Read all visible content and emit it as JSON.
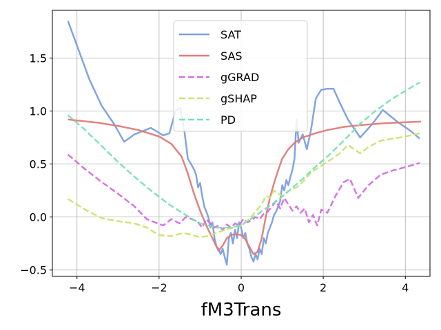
{
  "chart_data": {
    "type": "line",
    "xlabel": "fM3Trans",
    "ylabel": "",
    "title": "",
    "xlim": [
      -4.6,
      4.6
    ],
    "ylim": [
      -0.56,
      1.95
    ],
    "xticks": [
      -4,
      -2,
      0,
      2,
      4
    ],
    "xtick_labels": [
      "−4",
      "−2",
      "0",
      "2",
      "4"
    ],
    "yticks": [
      -0.5,
      0.0,
      0.5,
      1.0,
      1.5
    ],
    "ytick_labels": [
      "−0.5",
      "0.0",
      "0.5",
      "1.0",
      "1.5"
    ],
    "grid": true,
    "legend_position": "top-center",
    "series": [
      {
        "name": "SAT",
        "color": "#7b9fe0",
        "dash": "solid",
        "opacity": 1.0,
        "x": [
          -4.22,
          -3.7,
          -3.4,
          -3.1,
          -2.85,
          -2.6,
          -2.2,
          -1.9,
          -1.75,
          -1.6,
          -1.48,
          -1.38,
          -1.3,
          -1.22,
          -1.15,
          -1.1,
          -1.05,
          -1.0,
          -0.95,
          -0.9,
          -0.85,
          -0.8,
          -0.75,
          -0.7,
          -0.65,
          -0.6,
          -0.55,
          -0.5,
          -0.45,
          -0.4,
          -0.35,
          -0.3,
          -0.25,
          -0.2,
          -0.15,
          -0.1,
          -0.05,
          0.0,
          0.05,
          0.1,
          0.15,
          0.2,
          0.25,
          0.3,
          0.35,
          0.4,
          0.45,
          0.5,
          0.55,
          0.6,
          0.65,
          0.7,
          0.75,
          0.8,
          0.85,
          0.9,
          0.95,
          1.0,
          1.05,
          1.1,
          1.15,
          1.2,
          1.25,
          1.3,
          1.35,
          1.4,
          1.5,
          1.6,
          1.7,
          1.82,
          1.95,
          2.1,
          2.25,
          2.4,
          2.6,
          2.9,
          3.2,
          3.45,
          3.8,
          4.1,
          4.35
        ],
        "y": [
          1.85,
          1.3,
          1.05,
          0.88,
          0.71,
          0.78,
          0.84,
          0.77,
          0.79,
          1.0,
          1.03,
          0.8,
          0.55,
          0.5,
          0.45,
          0.4,
          0.28,
          0.32,
          0.2,
          0.1,
          0.05,
          0.0,
          -0.1,
          -0.05,
          -0.2,
          -0.28,
          -0.3,
          -0.35,
          -0.3,
          -0.38,
          -0.45,
          -0.2,
          -0.15,
          -0.25,
          -0.12,
          -0.2,
          -0.05,
          -0.1,
          -0.2,
          -0.15,
          -0.25,
          -0.3,
          -0.38,
          -0.42,
          -0.35,
          -0.4,
          -0.3,
          -0.35,
          -0.2,
          -0.25,
          -0.15,
          -0.1,
          -0.05,
          0.02,
          0.05,
          0.1,
          0.15,
          0.3,
          0.25,
          0.35,
          0.3,
          0.38,
          0.45,
          0.55,
          0.92,
          0.7,
          0.78,
          0.64,
          0.82,
          1.12,
          1.2,
          1.21,
          1.21,
          1.08,
          0.92,
          0.75,
          0.88,
          1.01,
          0.9,
          0.82,
          0.74
        ]
      },
      {
        "name": "SAS",
        "color": "#e07b78",
        "dash": "solid",
        "opacity": 1.0,
        "x": [
          -4.22,
          -3.5,
          -3.0,
          -2.5,
          -2.0,
          -1.7,
          -1.45,
          -1.3,
          -1.15,
          -1.0,
          -0.85,
          -0.7,
          -0.55,
          -0.45,
          -0.35,
          -0.25,
          -0.15,
          0.0,
          0.1,
          0.2,
          0.3,
          0.4,
          0.5,
          0.6,
          0.7,
          0.8,
          0.9,
          1.0,
          1.15,
          1.3,
          1.5,
          1.8,
          2.1,
          2.5,
          3.0,
          3.5,
          4.0,
          4.38
        ],
        "y": [
          0.92,
          0.89,
          0.86,
          0.82,
          0.76,
          0.69,
          0.57,
          0.41,
          0.22,
          0.06,
          -0.08,
          -0.2,
          -0.32,
          -0.27,
          -0.2,
          -0.17,
          -0.16,
          -0.17,
          -0.21,
          -0.28,
          -0.35,
          -0.33,
          -0.2,
          0.0,
          0.18,
          0.32,
          0.44,
          0.55,
          0.64,
          0.7,
          0.75,
          0.79,
          0.82,
          0.85,
          0.87,
          0.885,
          0.895,
          0.9
        ]
      },
      {
        "name": "gGRAD",
        "color": "#d56ee0",
        "dash": "dashed",
        "opacity": 1.0,
        "x": [
          -4.22,
          -3.8,
          -3.4,
          -3.0,
          -2.6,
          -2.3,
          -2.1,
          -1.9,
          -1.7,
          -1.5,
          -1.35,
          -1.2,
          -1.05,
          -0.95,
          -0.85,
          -0.75,
          -0.65,
          -0.55,
          -0.45,
          -0.35,
          -0.25,
          -0.15,
          -0.05,
          0.05,
          0.15,
          0.25,
          0.35,
          0.45,
          0.55,
          0.65,
          0.75,
          0.85,
          0.95,
          1.05,
          1.15,
          1.25,
          1.35,
          1.45,
          1.55,
          1.65,
          1.75,
          1.85,
          1.95,
          2.1,
          2.3,
          2.5,
          2.65,
          2.85,
          3.1,
          3.4,
          3.7,
          4.0,
          4.35
        ],
        "y": [
          0.59,
          0.45,
          0.33,
          0.22,
          0.1,
          -0.02,
          -0.05,
          -0.08,
          -0.02,
          -0.06,
          0.0,
          -0.02,
          -0.05,
          -0.1,
          -0.02,
          -0.06,
          -0.1,
          -0.08,
          -0.12,
          -0.07,
          -0.1,
          -0.06,
          -0.08,
          -0.02,
          -0.05,
          -0.03,
          0.0,
          -0.02,
          0.03,
          0.05,
          0.1,
          0.15,
          0.08,
          0.18,
          0.12,
          0.06,
          0.1,
          0.04,
          0.08,
          -0.05,
          0.02,
          -0.08,
          0.07,
          0.04,
          0.2,
          0.33,
          0.36,
          0.18,
          0.3,
          0.4,
          0.44,
          0.47,
          0.51
        ]
      },
      {
        "name": "gSHAP",
        "color": "#cde074",
        "dash": "dashed",
        "opacity": 1.0,
        "x": [
          -4.22,
          -3.8,
          -3.4,
          -3.0,
          -2.6,
          -2.3,
          -2.0,
          -1.7,
          -1.4,
          -1.2,
          -1.0,
          -0.8,
          -0.6,
          -0.4,
          -0.2,
          0.0,
          0.2,
          0.35,
          0.5,
          0.6,
          0.7,
          0.8,
          0.9,
          1.0,
          1.1,
          1.2,
          1.35,
          1.5,
          1.7,
          1.9,
          2.1,
          2.4,
          2.6,
          2.9,
          3.1,
          3.4,
          3.7,
          4.0,
          4.35
        ],
        "y": [
          0.17,
          0.07,
          -0.01,
          -0.04,
          -0.06,
          -0.1,
          -0.17,
          -0.18,
          -0.15,
          -0.17,
          -0.19,
          -0.18,
          -0.15,
          -0.12,
          -0.1,
          -0.08,
          -0.02,
          0.05,
          0.12,
          0.2,
          0.18,
          0.25,
          0.22,
          0.2,
          0.23,
          0.26,
          0.28,
          0.33,
          0.42,
          0.47,
          0.52,
          0.6,
          0.68,
          0.6,
          0.66,
          0.72,
          0.74,
          0.76,
          0.79
        ]
      },
      {
        "name": "PD",
        "color": "#7be0b2",
        "dash": "dashed",
        "opacity": 1.0,
        "x": [
          -4.22,
          -3.8,
          -3.4,
          -3.0,
          -2.6,
          -2.2,
          -1.8,
          -1.4,
          -1.0,
          -0.6,
          -0.3,
          0.0,
          0.3,
          0.6,
          0.9,
          1.2,
          1.5,
          1.8,
          2.1,
          2.5,
          2.9,
          3.3,
          3.7,
          4.0,
          4.35
        ],
        "y": [
          0.96,
          0.82,
          0.67,
          0.52,
          0.38,
          0.25,
          0.13,
          0.03,
          -0.06,
          -0.1,
          -0.1,
          -0.08,
          0.0,
          0.08,
          0.16,
          0.26,
          0.36,
          0.47,
          0.57,
          0.72,
          0.88,
          1.01,
          1.12,
          1.19,
          1.27
        ]
      }
    ]
  }
}
